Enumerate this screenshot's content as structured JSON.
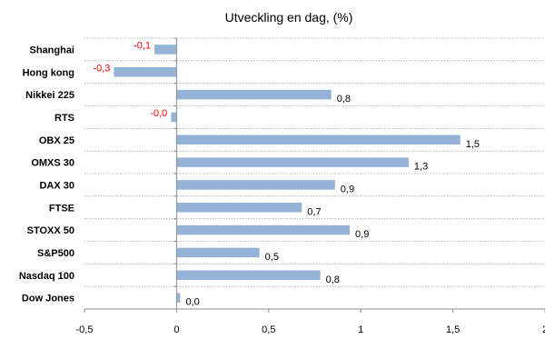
{
  "chart_data": {
    "type": "bar",
    "orientation": "horizontal",
    "title": "Utveckling  en dag, (%)",
    "categories": [
      "Shanghai",
      "Hong kong",
      "Nikkei 225",
      "RTS",
      "OBX 25",
      "OMXS 30",
      "DAX 30",
      "FTSE",
      "STOXX 50",
      "S&P500",
      "Nasdaq 100",
      "Dow Jones"
    ],
    "values": [
      -0.12,
      -0.34,
      0.84,
      -0.03,
      1.54,
      1.26,
      0.86,
      0.68,
      0.94,
      0.45,
      0.78,
      0.02
    ],
    "value_labels": [
      "-0,1",
      "-0,3",
      "0,8",
      "-0,0",
      "1,5",
      "1,3",
      "0,9",
      "0,7",
      "0,9",
      "0,5",
      "0,8",
      "0,0"
    ],
    "xticks": [
      -0.5,
      0,
      0.5,
      1,
      1.5,
      2
    ],
    "xtick_labels": [
      "-0,5",
      "0",
      "0,5",
      "1",
      "1,5",
      "2"
    ],
    "xlim": [
      -0.5,
      2
    ],
    "xlabel": "",
    "ylabel": "",
    "grid": "horizontal dotted",
    "legend": "none",
    "colors": {
      "bar": "#95b3d7",
      "negative_label": "#ff0000",
      "positive_label": "#000000"
    }
  }
}
